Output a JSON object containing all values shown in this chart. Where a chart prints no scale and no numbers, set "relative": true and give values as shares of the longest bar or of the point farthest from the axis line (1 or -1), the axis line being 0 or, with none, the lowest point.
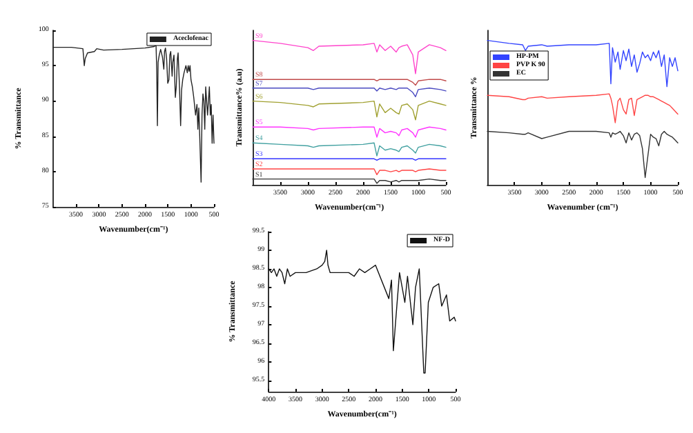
{
  "chart_data": [
    {
      "type": "line",
      "xlabel": "Wavenumber(cm⁻¹)",
      "ylabel": "% Transmittance",
      "xlim": [
        4000,
        500
      ],
      "xticks": [
        3500,
        3000,
        2500,
        2000,
        1500,
        1000,
        500
      ],
      "ylim": [
        75,
        100
      ],
      "yticks": [
        75,
        80,
        85,
        90,
        95,
        100
      ],
      "legend": "top right",
      "grid": false,
      "marker": "none",
      "line_style": "solid",
      "series": [
        {
          "name": "Aceclofenac",
          "color": "#222222",
          "x": [
            4000,
            3600,
            3350,
            3320,
            3300,
            3250,
            3100,
            3050,
            2900,
            2500,
            2000,
            1800,
            1760,
            1745,
            1730,
            1715,
            1690,
            1660,
            1620,
            1590,
            1575,
            1555,
            1530,
            1505,
            1480,
            1460,
            1440,
            1410,
            1395,
            1370,
            1340,
            1320,
            1295,
            1280,
            1250,
            1225,
            1205,
            1180,
            1150,
            1110,
            1080,
            1060,
            1040,
            1020,
            1000,
            970,
            940,
            900,
            870,
            850,
            830,
            810,
            780,
            760,
            740,
            720,
            700,
            680,
            660,
            640,
            620,
            600,
            580,
            560,
            540,
            520,
            500
          ],
          "values": [
            97.6,
            97.6,
            97.4,
            95.0,
            96.0,
            96.8,
            97.0,
            97.4,
            97.2,
            97.3,
            97.5,
            97.7,
            97.9,
            94.5,
            86.5,
            95.5,
            96.5,
            97.3,
            96.2,
            94.5,
            97.0,
            97.5,
            96.0,
            92.5,
            93.0,
            96.5,
            97.0,
            93.5,
            95.5,
            96.5,
            90.5,
            92.0,
            96.0,
            96.8,
            92.0,
            86.5,
            91.5,
            93.0,
            94.0,
            95.0,
            94.0,
            95.0,
            94.2,
            95.0,
            93.0,
            92.0,
            90.5,
            88.0,
            89.5,
            86.0,
            89.0,
            85.0,
            78.5,
            88.0,
            91.0,
            90.0,
            86.0,
            92.0,
            92.0,
            88.0,
            90.0,
            92.0,
            88.0,
            89.5,
            84.0,
            88.0,
            84.0
          ]
        }
      ]
    },
    {
      "type": "line",
      "relative": true,
      "xlabel": "Wavenumber(cm⁻¹)",
      "ylabel": "Transmittance% (a.u)",
      "xlim": [
        4000,
        500
      ],
      "xticks": [
        3500,
        3000,
        2500,
        2000,
        1500,
        1000,
        500
      ],
      "tick_labels": "x",
      "legend": false,
      "grid": false,
      "marker": "none",
      "line_style": "solid",
      "x": [
        4000,
        3500,
        3000,
        2900,
        2800,
        2000,
        1800,
        1750,
        1700,
        1600,
        1500,
        1400,
        1350,
        1300,
        1200,
        1100,
        1050,
        1000,
        800,
        600,
        500
      ],
      "series": [
        {
          "name": "S9",
          "color": "#ff44cc",
          "values": [
            1.0,
            0.98,
            0.95,
            0.93,
            0.96,
            0.97,
            0.98,
            0.92,
            0.97,
            0.93,
            0.96,
            0.92,
            0.95,
            0.96,
            0.97,
            0.9,
            0.77,
            0.92,
            0.97,
            0.95,
            0.93
          ]
        },
        {
          "name": "S8",
          "color": "#c04848",
          "values": [
            0.73,
            0.73,
            0.73,
            0.73,
            0.73,
            0.73,
            0.73,
            0.72,
            0.73,
            0.73,
            0.73,
            0.73,
            0.73,
            0.73,
            0.73,
            0.71,
            0.69,
            0.72,
            0.73,
            0.73,
            0.72
          ]
        },
        {
          "name": "S7",
          "color": "#4848c0",
          "values": [
            0.67,
            0.67,
            0.67,
            0.66,
            0.67,
            0.67,
            0.67,
            0.65,
            0.67,
            0.66,
            0.67,
            0.66,
            0.67,
            0.67,
            0.67,
            0.64,
            0.61,
            0.66,
            0.67,
            0.66,
            0.65
          ]
        },
        {
          "name": "S6",
          "color": "#a0a030",
          "values": [
            0.58,
            0.57,
            0.55,
            0.54,
            0.56,
            0.57,
            0.58,
            0.47,
            0.56,
            0.5,
            0.53,
            0.5,
            0.49,
            0.55,
            0.56,
            0.52,
            0.45,
            0.55,
            0.58,
            0.56,
            0.55
          ]
        },
        {
          "name": "S5",
          "color": "#ff33ff",
          "values": [
            0.4,
            0.4,
            0.39,
            0.38,
            0.39,
            0.4,
            0.4,
            0.33,
            0.39,
            0.36,
            0.37,
            0.36,
            0.34,
            0.38,
            0.39,
            0.36,
            0.33,
            0.38,
            0.4,
            0.39,
            0.38
          ]
        },
        {
          "name": "S4",
          "color": "#40a0a0",
          "values": [
            0.29,
            0.28,
            0.27,
            0.26,
            0.27,
            0.28,
            0.29,
            0.2,
            0.27,
            0.24,
            0.25,
            0.24,
            0.23,
            0.26,
            0.27,
            0.24,
            0.22,
            0.26,
            0.28,
            0.27,
            0.26
          ]
        },
        {
          "name": "S3",
          "color": "#3333ff",
          "values": [
            0.18,
            0.18,
            0.18,
            0.18,
            0.18,
            0.18,
            0.18,
            0.17,
            0.18,
            0.18,
            0.18,
            0.18,
            0.18,
            0.18,
            0.18,
            0.18,
            0.17,
            0.18,
            0.18,
            0.18,
            0.18
          ]
        },
        {
          "name": "S2",
          "color": "#ff4444",
          "values": [
            0.11,
            0.11,
            0.11,
            0.11,
            0.11,
            0.11,
            0.11,
            0.07,
            0.1,
            0.1,
            0.09,
            0.1,
            0.09,
            0.1,
            0.1,
            0.1,
            0.09,
            0.1,
            0.11,
            0.1,
            0.1
          ]
        },
        {
          "name": "S1",
          "color": "#333333",
          "values": [
            0.04,
            0.04,
            0.04,
            0.04,
            0.04,
            0.04,
            0.04,
            0.01,
            0.03,
            0.03,
            0.02,
            0.03,
            0.02,
            0.03,
            0.03,
            0.03,
            0.03,
            0.03,
            0.04,
            0.03,
            0.03
          ]
        }
      ]
    },
    {
      "type": "line",
      "relative": true,
      "xlabel": "Wavenumber (cm⁻¹)",
      "ylabel": "Transmittance %",
      "xlim": [
        4000,
        500
      ],
      "xticks": [
        3500,
        3000,
        2500,
        2000,
        1500,
        1000,
        500
      ],
      "tick_labels": "x",
      "legend": "top left",
      "grid": false,
      "marker": "none",
      "line_style": "solid",
      "x": [
        4000,
        3600,
        3350,
        3300,
        3250,
        3000,
        2900,
        2500,
        2000,
        1760,
        1730,
        1700,
        1650,
        1600,
        1560,
        1500,
        1450,
        1400,
        1350,
        1300,
        1250,
        1200,
        1150,
        1100,
        1050,
        1000,
        950,
        900,
        850,
        800,
        750,
        700,
        650,
        600,
        550,
        500
      ],
      "series": [
        {
          "name": "HP-PM",
          "color": "#3344ff",
          "values": [
            1.0,
            0.98,
            0.97,
            0.93,
            0.96,
            0.97,
            0.96,
            0.97,
            0.97,
            0.98,
            0.7,
            0.95,
            0.85,
            0.92,
            0.8,
            0.93,
            0.86,
            0.94,
            0.82,
            0.9,
            0.78,
            0.84,
            0.92,
            0.88,
            0.9,
            0.86,
            0.92,
            0.88,
            0.93,
            0.82,
            0.9,
            0.68,
            0.88,
            0.82,
            0.88,
            0.79
          ]
        },
        {
          "name": "PVP K 90",
          "color": "#ff4444",
          "values": [
            0.62,
            0.61,
            0.59,
            0.59,
            0.6,
            0.61,
            0.6,
            0.61,
            0.62,
            0.63,
            0.6,
            0.55,
            0.43,
            0.58,
            0.6,
            0.52,
            0.49,
            0.59,
            0.6,
            0.48,
            0.59,
            0.6,
            0.61,
            0.62,
            0.62,
            0.61,
            0.61,
            0.6,
            0.59,
            0.58,
            0.57,
            0.56,
            0.55,
            0.53,
            0.51,
            0.49
          ]
        },
        {
          "name": "EC",
          "color": "#333333",
          "values": [
            0.37,
            0.36,
            0.35,
            0.35,
            0.36,
            0.32,
            0.33,
            0.37,
            0.37,
            0.36,
            0.33,
            0.36,
            0.35,
            0.36,
            0.37,
            0.34,
            0.29,
            0.36,
            0.31,
            0.35,
            0.36,
            0.34,
            0.25,
            0.05,
            0.2,
            0.35,
            0.33,
            0.32,
            0.27,
            0.35,
            0.37,
            0.35,
            0.34,
            0.33,
            0.31,
            0.29
          ]
        }
      ]
    },
    {
      "type": "line",
      "xlabel": "Wavenumber(cm⁻¹)",
      "ylabel": "% Transmittance",
      "xlim": [
        4000,
        500
      ],
      "xticks": [
        4000,
        3500,
        3000,
        2500,
        2000,
        1500,
        1000,
        500
      ],
      "ylim": [
        95.2,
        99.5
      ],
      "yticks": [
        95.5,
        96.0,
        96.5,
        97.0,
        97.5,
        98.0,
        98.5,
        99.0,
        99.5
      ],
      "legend": "top right",
      "grid": false,
      "marker": "none",
      "line_style": "solid",
      "series": [
        {
          "name": "NF-D",
          "color": "#111111",
          "x": [
            4000,
            3950,
            3900,
            3850,
            3800,
            3750,
            3700,
            3650,
            3600,
            3500,
            3300,
            3100,
            3000,
            2950,
            2915,
            2890,
            2850,
            2500,
            2400,
            2300,
            2200,
            2100,
            2000,
            1750,
            1700,
            1665,
            1600,
            1550,
            1500,
            1450,
            1400,
            1300,
            1250,
            1180,
            1095,
            1070,
            1010,
            920,
            815,
            760,
            670,
            610,
            525,
            500
          ],
          "values": [
            98.5,
            98.4,
            98.5,
            98.3,
            98.5,
            98.4,
            98.1,
            98.5,
            98.3,
            98.4,
            98.4,
            98.5,
            98.6,
            98.7,
            99.0,
            98.6,
            98.4,
            98.4,
            98.3,
            98.5,
            98.4,
            98.5,
            98.6,
            97.7,
            98.2,
            96.3,
            97.5,
            98.4,
            98.0,
            97.6,
            98.3,
            97.0,
            98.0,
            98.5,
            95.7,
            95.7,
            97.6,
            98.0,
            98.1,
            97.5,
            97.8,
            97.1,
            97.2,
            97.1
          ]
        }
      ]
    }
  ]
}
